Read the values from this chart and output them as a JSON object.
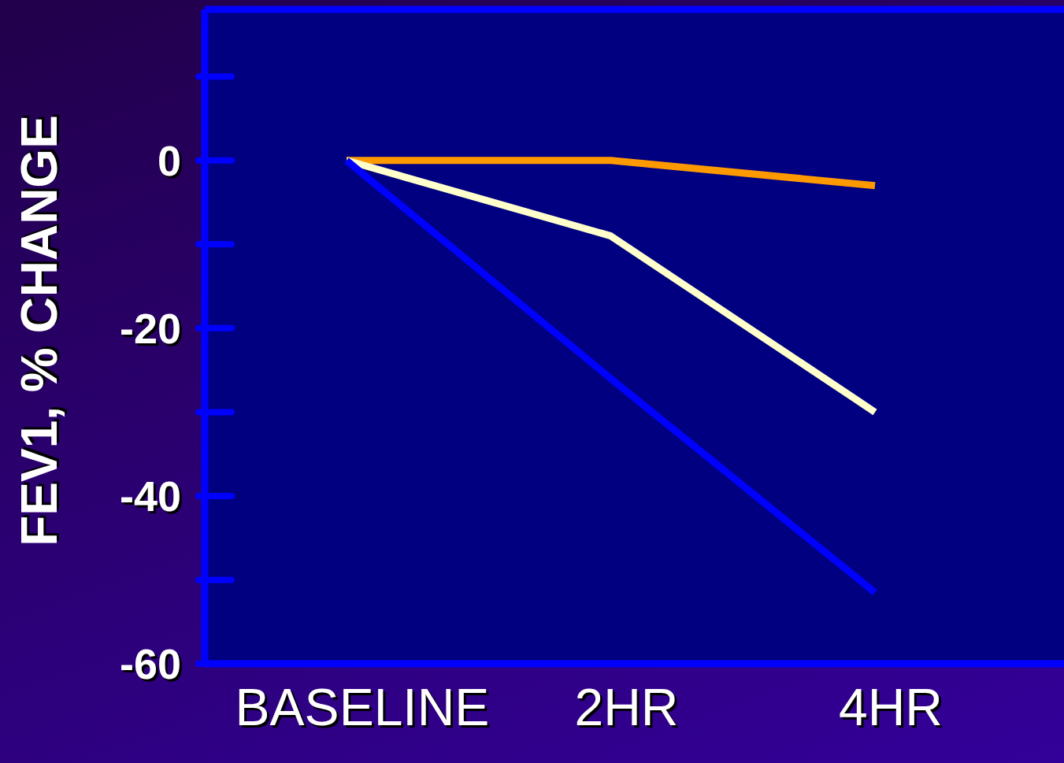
{
  "chart_data": {
    "type": "line",
    "ylabel": "FEV1, % CHANGE",
    "categories": [
      "BASELINE",
      "2HR",
      "4HR"
    ],
    "series": [
      {
        "color": "#ff9900",
        "values": [
          0,
          0,
          -3
        ]
      },
      {
        "color": "#ffffcc",
        "values": [
          0,
          -9,
          -30
        ]
      },
      {
        "color": "#0000ff",
        "values": [
          0,
          -26,
          -51.5
        ]
      }
    ],
    "ylim": [
      -60,
      18
    ],
    "yticks": [
      {
        "value": 10,
        "label": null
      },
      0,
      {
        "value": -10,
        "label": null
      },
      -20,
      {
        "value": -30,
        "label": null
      },
      -40,
      {
        "value": -50,
        "label": null
      },
      -60
    ],
    "legend": false,
    "marker": "none",
    "line_style": "solid"
  }
}
